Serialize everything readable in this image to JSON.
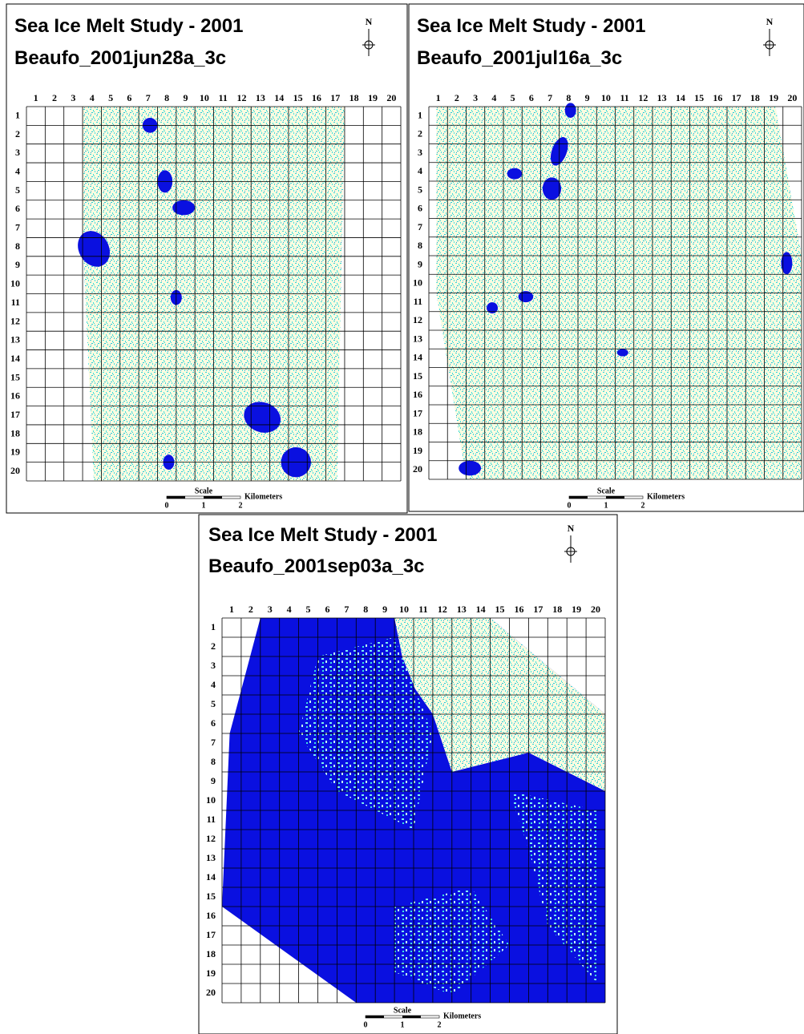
{
  "panels": [
    {
      "title": "Sea Ice Melt Study - 2001",
      "subtitle": "Beaufo_2001jun28a_3c",
      "north": "N",
      "columns": [
        1,
        2,
        3,
        4,
        5,
        6,
        7,
        8,
        9,
        10,
        11,
        12,
        13,
        14,
        15,
        16,
        17,
        18,
        19,
        20
      ],
      "rows": [
        1,
        2,
        3,
        4,
        5,
        6,
        7,
        8,
        9,
        10,
        11,
        12,
        13,
        14,
        15,
        16,
        17,
        18,
        19,
        20
      ],
      "scale": {
        "title": "Scale",
        "ticks": [
          0,
          1,
          2
        ],
        "unit": "Kilometers"
      }
    },
    {
      "title": "Sea Ice Melt Study - 2001",
      "subtitle": "Beaufo_2001jul16a_3c",
      "north": "N",
      "columns": [
        1,
        2,
        3,
        4,
        5,
        6,
        7,
        8,
        9,
        10,
        11,
        12,
        13,
        14,
        15,
        16,
        17,
        18,
        19,
        20
      ],
      "rows": [
        1,
        2,
        3,
        4,
        5,
        6,
        7,
        8,
        9,
        10,
        11,
        12,
        13,
        14,
        15,
        16,
        17,
        18,
        19,
        20
      ],
      "scale": {
        "title": "Scale",
        "ticks": [
          0,
          1,
          2
        ],
        "unit": "Kilometers"
      }
    },
    {
      "title": "Sea Ice Melt Study - 2001",
      "subtitle": "Beaufo_2001sep03a_3c",
      "north": "N",
      "columns": [
        1,
        2,
        3,
        4,
        5,
        6,
        7,
        8,
        9,
        10,
        11,
        12,
        13,
        14,
        15,
        16,
        17,
        18,
        19,
        20
      ],
      "rows": [
        1,
        2,
        3,
        4,
        5,
        6,
        7,
        8,
        9,
        10,
        11,
        12,
        13,
        14,
        15,
        16,
        17,
        18,
        19,
        20
      ],
      "scale": {
        "title": "Scale",
        "ticks": [
          0,
          1,
          2
        ],
        "unit": "Kilometers"
      }
    }
  ]
}
